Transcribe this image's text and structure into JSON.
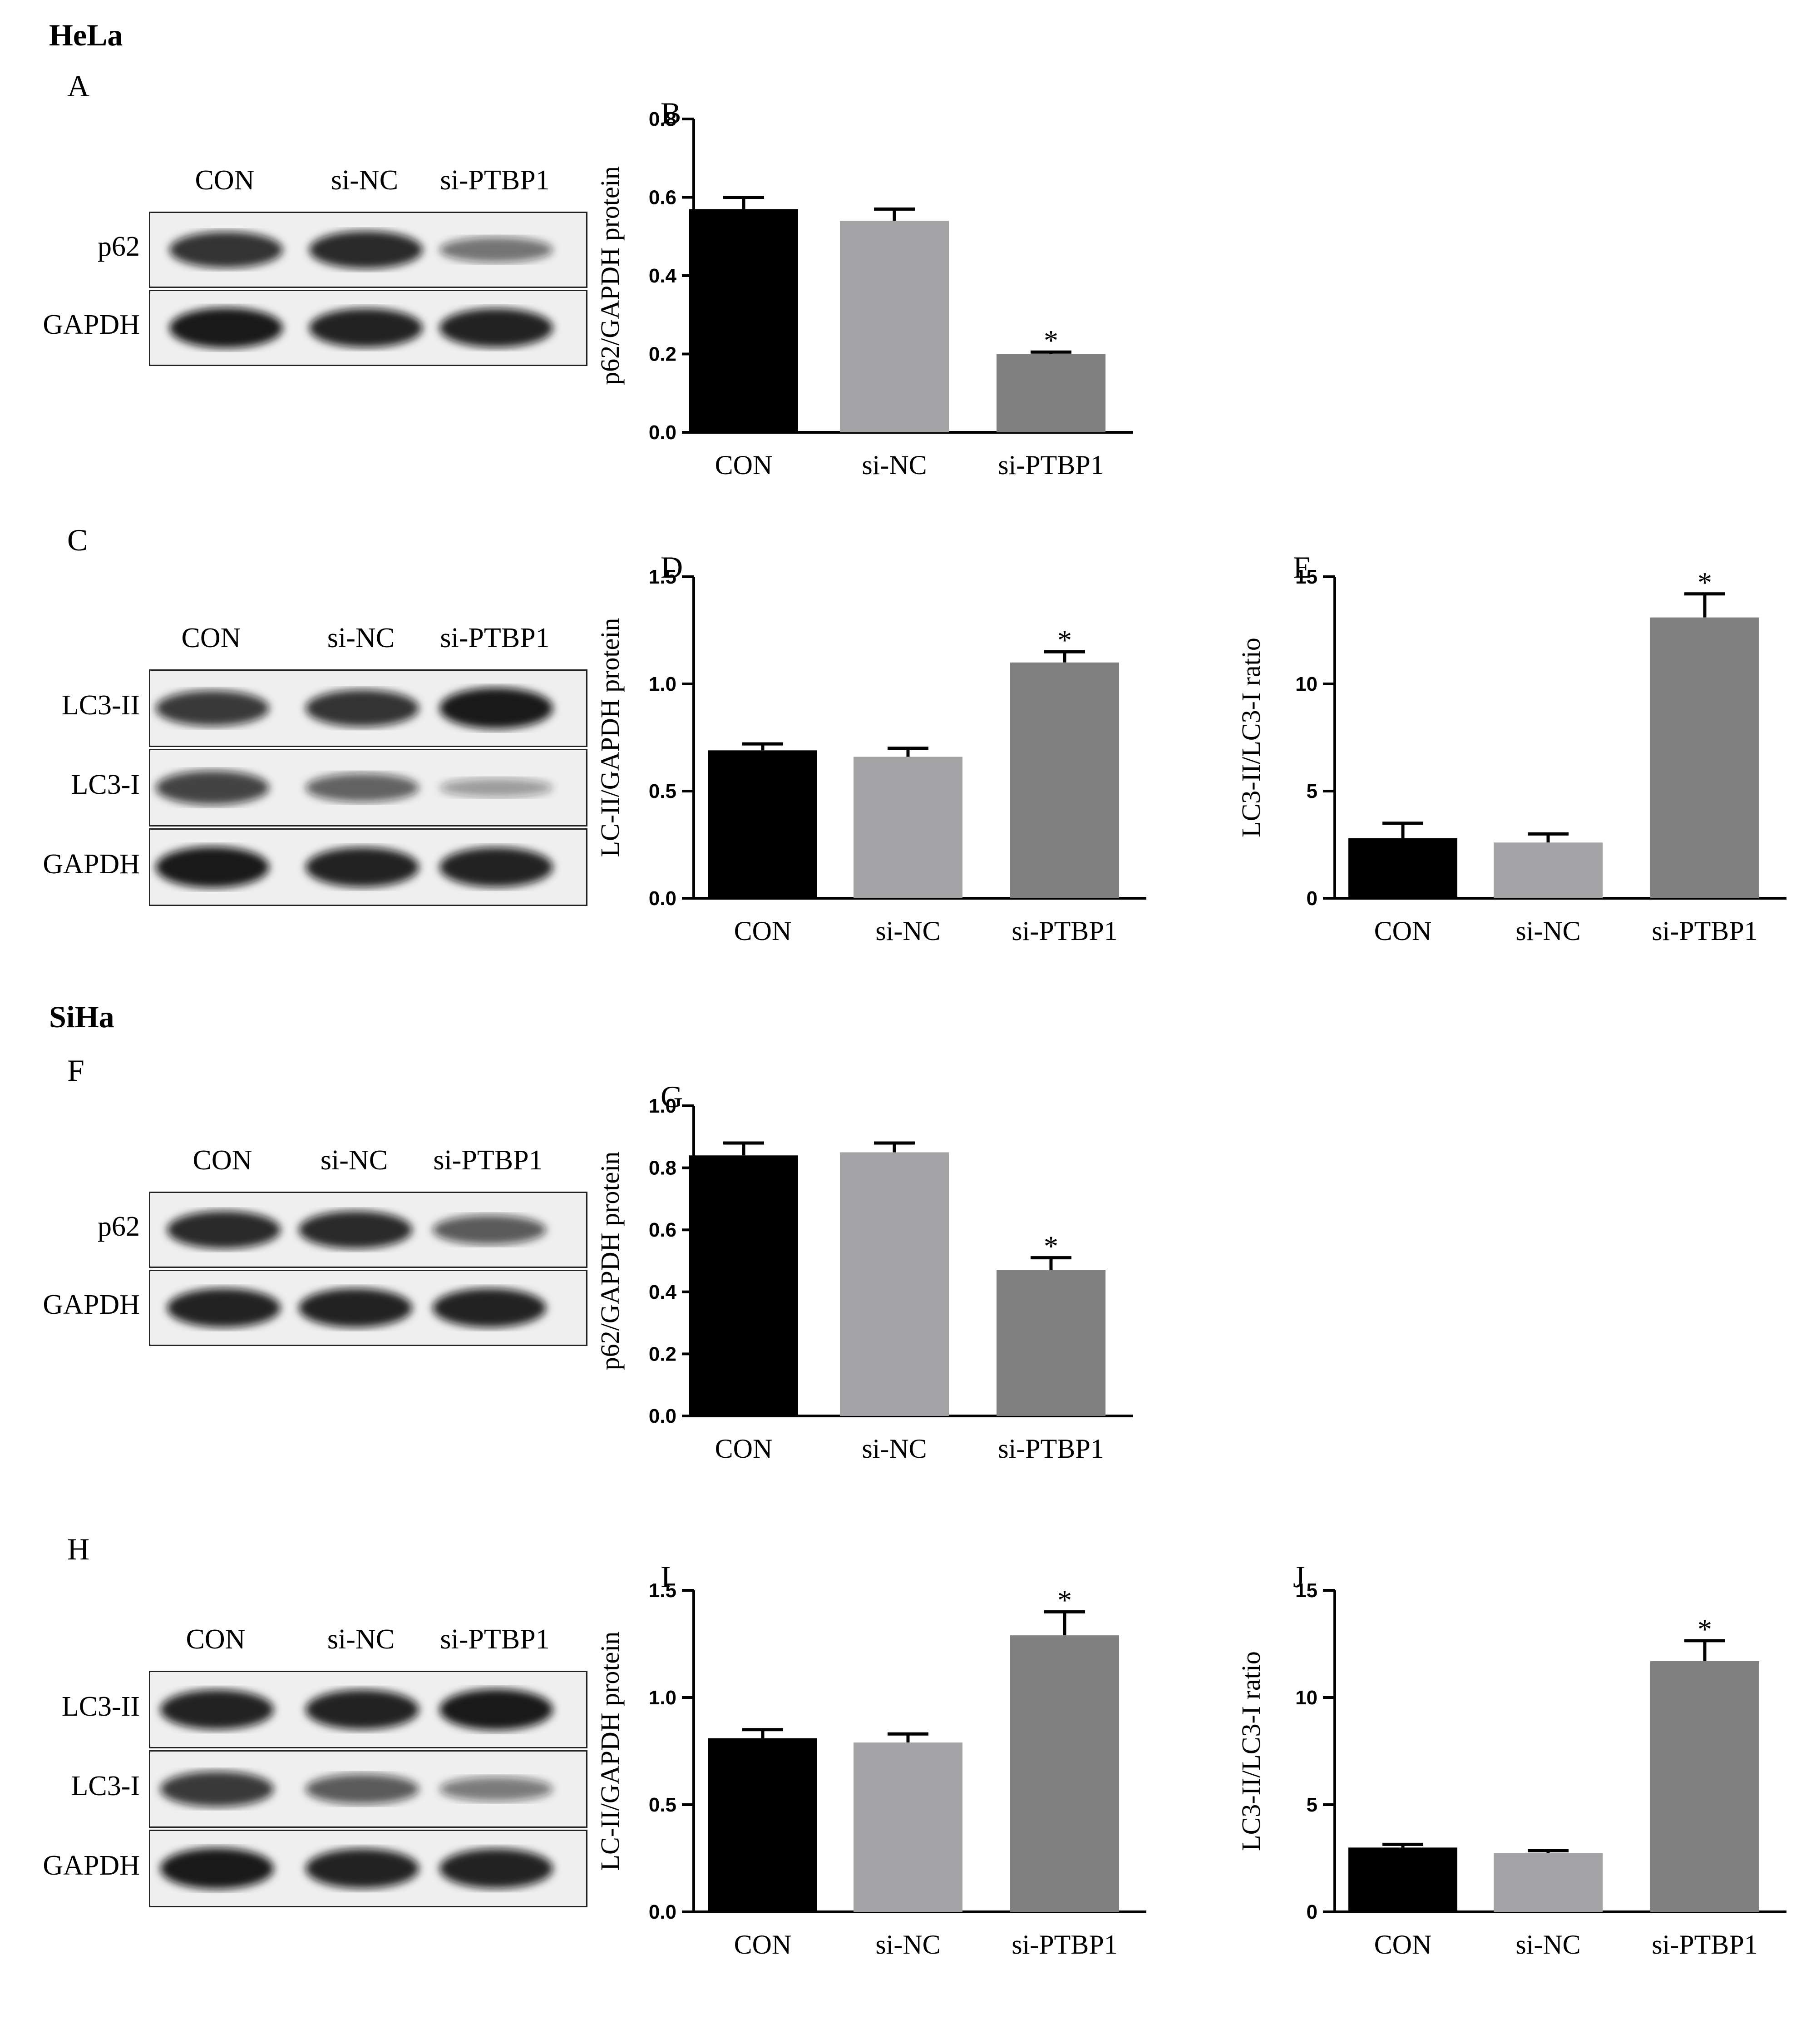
{
  "sections": [
    {
      "label": "HeLa"
    },
    {
      "label": "SiHa"
    }
  ],
  "blots": [
    {
      "letter": "A",
      "lanes": [
        "CON",
        "si-NC",
        "si-PTBP1"
      ],
      "rows": [
        {
          "label": "p62",
          "intensity": [
            0.85,
            0.9,
            0.45
          ]
        },
        {
          "label": "GAPDH",
          "intensity": [
            1.0,
            0.95,
            0.95
          ]
        }
      ]
    },
    {
      "letter": "C",
      "lanes": [
        "CON",
        "si-NC",
        "si-PTBP1"
      ],
      "rows": [
        {
          "label": "LC3-II",
          "intensity": [
            0.8,
            0.85,
            1.0
          ]
        },
        {
          "label": "LC3-I",
          "intensity": [
            0.75,
            0.55,
            0.2
          ]
        },
        {
          "label": "GAPDH",
          "intensity": [
            1.0,
            0.95,
            0.95
          ]
        }
      ]
    },
    {
      "letter": "F",
      "lanes": [
        "CON",
        "si-NC",
        "si-PTBP1"
      ],
      "rows": [
        {
          "label": "p62",
          "intensity": [
            0.9,
            0.9,
            0.6
          ]
        },
        {
          "label": "GAPDH",
          "intensity": [
            0.95,
            0.95,
            0.95
          ]
        }
      ]
    },
    {
      "letter": "H",
      "lanes": [
        "CON",
        "si-NC",
        "si-PTBP1"
      ],
      "rows": [
        {
          "label": "LC3-II",
          "intensity": [
            0.95,
            0.95,
            1.0
          ]
        },
        {
          "label": "LC3-I",
          "intensity": [
            0.8,
            0.6,
            0.4
          ]
        },
        {
          "label": "GAPDH",
          "intensity": [
            1.0,
            0.95,
            0.95
          ]
        }
      ]
    }
  ],
  "colors": {
    "CON": "#000000",
    "si-NC": "#a3a3a6",
    "si-PTBP1": "#808080"
  },
  "chart_data": [
    {
      "letter": "B",
      "type": "bar",
      "categories": [
        "CON",
        "si-NC",
        "si-PTBP1"
      ],
      "values": [
        0.57,
        0.54,
        0.2
      ],
      "errors": [
        0.03,
        0.03,
        0.005
      ],
      "significance": [
        "",
        "",
        "*"
      ],
      "ylabel": "p62/GAPDH protein",
      "ylim": [
        0,
        0.8
      ],
      "yticks": [
        "0.0",
        "0.2",
        "0.4",
        "0.6",
        "0.8"
      ]
    },
    {
      "letter": "D",
      "type": "bar",
      "categories": [
        "CON",
        "si-NC",
        "si-PTBP1"
      ],
      "values": [
        0.69,
        0.66,
        1.1
      ],
      "errors": [
        0.03,
        0.04,
        0.05
      ],
      "significance": [
        "",
        "",
        "*"
      ],
      "ylabel": "LC-II/GAPDH protein",
      "ylim": [
        0,
        1.5
      ],
      "yticks": [
        "0.0",
        "0.5",
        "1.0",
        "1.5"
      ]
    },
    {
      "letter": "E",
      "type": "bar",
      "categories": [
        "CON",
        "si-NC",
        "si-PTBP1"
      ],
      "values": [
        2.8,
        2.6,
        13.1
      ],
      "errors": [
        0.7,
        0.4,
        1.1
      ],
      "significance": [
        "",
        "",
        "*"
      ],
      "ylabel": "LC3-II/LC3-I ratio",
      "ylim": [
        0,
        15
      ],
      "yticks": [
        "0",
        "5",
        "10",
        "15"
      ]
    },
    {
      "letter": "G",
      "type": "bar",
      "categories": [
        "CON",
        "si-NC",
        "si-PTBP1"
      ],
      "values": [
        0.84,
        0.85,
        0.47
      ],
      "errors": [
        0.04,
        0.03,
        0.04
      ],
      "significance": [
        "",
        "",
        "*"
      ],
      "ylabel": "p62/GAPDH protein",
      "ylim": [
        0,
        1.0
      ],
      "yticks": [
        "0.0",
        "0.2",
        "0.4",
        "0.6",
        "0.8",
        "1.0"
      ]
    },
    {
      "letter": "I",
      "type": "bar",
      "categories": [
        "CON",
        "si-NC",
        "si-PTBP1"
      ],
      "values": [
        0.81,
        0.79,
        1.29
      ],
      "errors": [
        0.04,
        0.04,
        0.11
      ],
      "significance": [
        "",
        "",
        "*"
      ],
      "ylabel": "LC-II/GAPDH protein",
      "ylim": [
        0,
        1.5
      ],
      "yticks": [
        "0.0",
        "0.5",
        "1.0",
        "1.5"
      ]
    },
    {
      "letter": "J",
      "type": "bar",
      "categories": [
        "CON",
        "si-NC",
        "si-PTBP1"
      ],
      "values": [
        3.0,
        2.75,
        11.7
      ],
      "errors": [
        0.15,
        0.1,
        0.95
      ],
      "significance": [
        "",
        "",
        "*"
      ],
      "ylabel": "LC3-II/LC3-I ratio",
      "ylim": [
        0,
        15
      ],
      "yticks": [
        "0",
        "5",
        "10",
        "15"
      ]
    }
  ]
}
